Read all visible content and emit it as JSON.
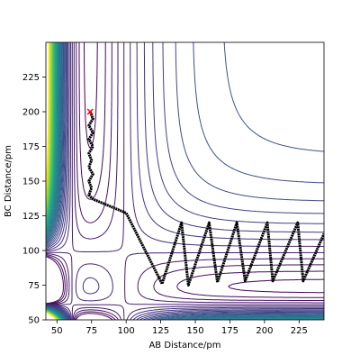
{
  "chart_data": {
    "type": "contour-trajectory",
    "xlabel": "AB Distance/pm",
    "ylabel": "BC Distance/pm",
    "xlim": [
      42,
      243
    ],
    "ylim": [
      50,
      250
    ],
    "xticks": [
      50,
      75,
      100,
      125,
      150,
      175,
      200,
      225
    ],
    "yticks": [
      50,
      75,
      100,
      125,
      150,
      175,
      200,
      225
    ],
    "series": [
      {
        "color": "#000000",
        "x": [
          74,
          76,
          73,
          76,
          73,
          76,
          73,
          75,
          73,
          76,
          73,
          75,
          73,
          76,
          100,
          126,
          140,
          145,
          160,
          166,
          180,
          186,
          202,
          206,
          224,
          228,
          243
        ],
        "y": [
          200,
          195,
          190,
          185,
          180,
          175,
          170,
          165,
          160,
          155,
          150,
          145,
          140,
          137,
          127,
          76,
          120,
          75,
          120,
          77,
          120,
          78,
          120,
          78,
          120,
          78,
          112
        ]
      }
    ],
    "start_marker_color": "#ff0000"
  }
}
